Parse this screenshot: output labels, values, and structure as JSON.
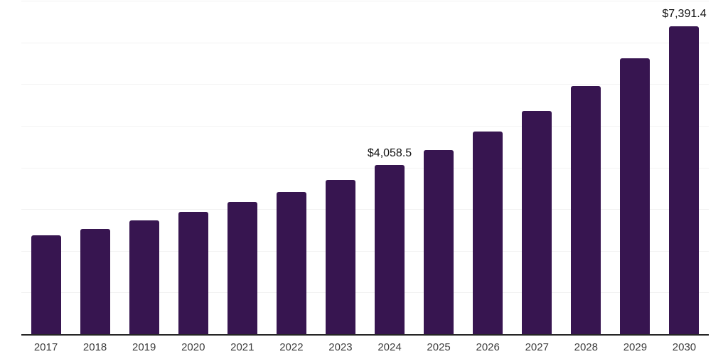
{
  "chart_data": {
    "type": "bar",
    "title": "",
    "xlabel": "",
    "ylabel": "",
    "categories": [
      "2017",
      "2018",
      "2019",
      "2020",
      "2021",
      "2022",
      "2023",
      "2024",
      "2025",
      "2026",
      "2027",
      "2028",
      "2029",
      "2030"
    ],
    "values": [
      2370,
      2530,
      2735,
      2940,
      3175,
      3415,
      3705,
      4058.5,
      4415,
      4870,
      5350,
      5955,
      6620,
      7391.4
    ],
    "annotations": [
      {
        "category": "2024",
        "text": "$4,058.5"
      },
      {
        "category": "2030",
        "text": "$7,391.4"
      }
    ],
    "ylim": [
      0,
      8000
    ],
    "gridline_step": 1000,
    "grid": true,
    "y_axis_labels_visible": false,
    "legend": "none",
    "colors": {
      "bar": "#371550",
      "axis_line": "#262626",
      "gridline": "#f2f2f2",
      "value_label": "#111111",
      "x_tick_label": "#3d3d3d",
      "background": "#ffffff"
    }
  }
}
